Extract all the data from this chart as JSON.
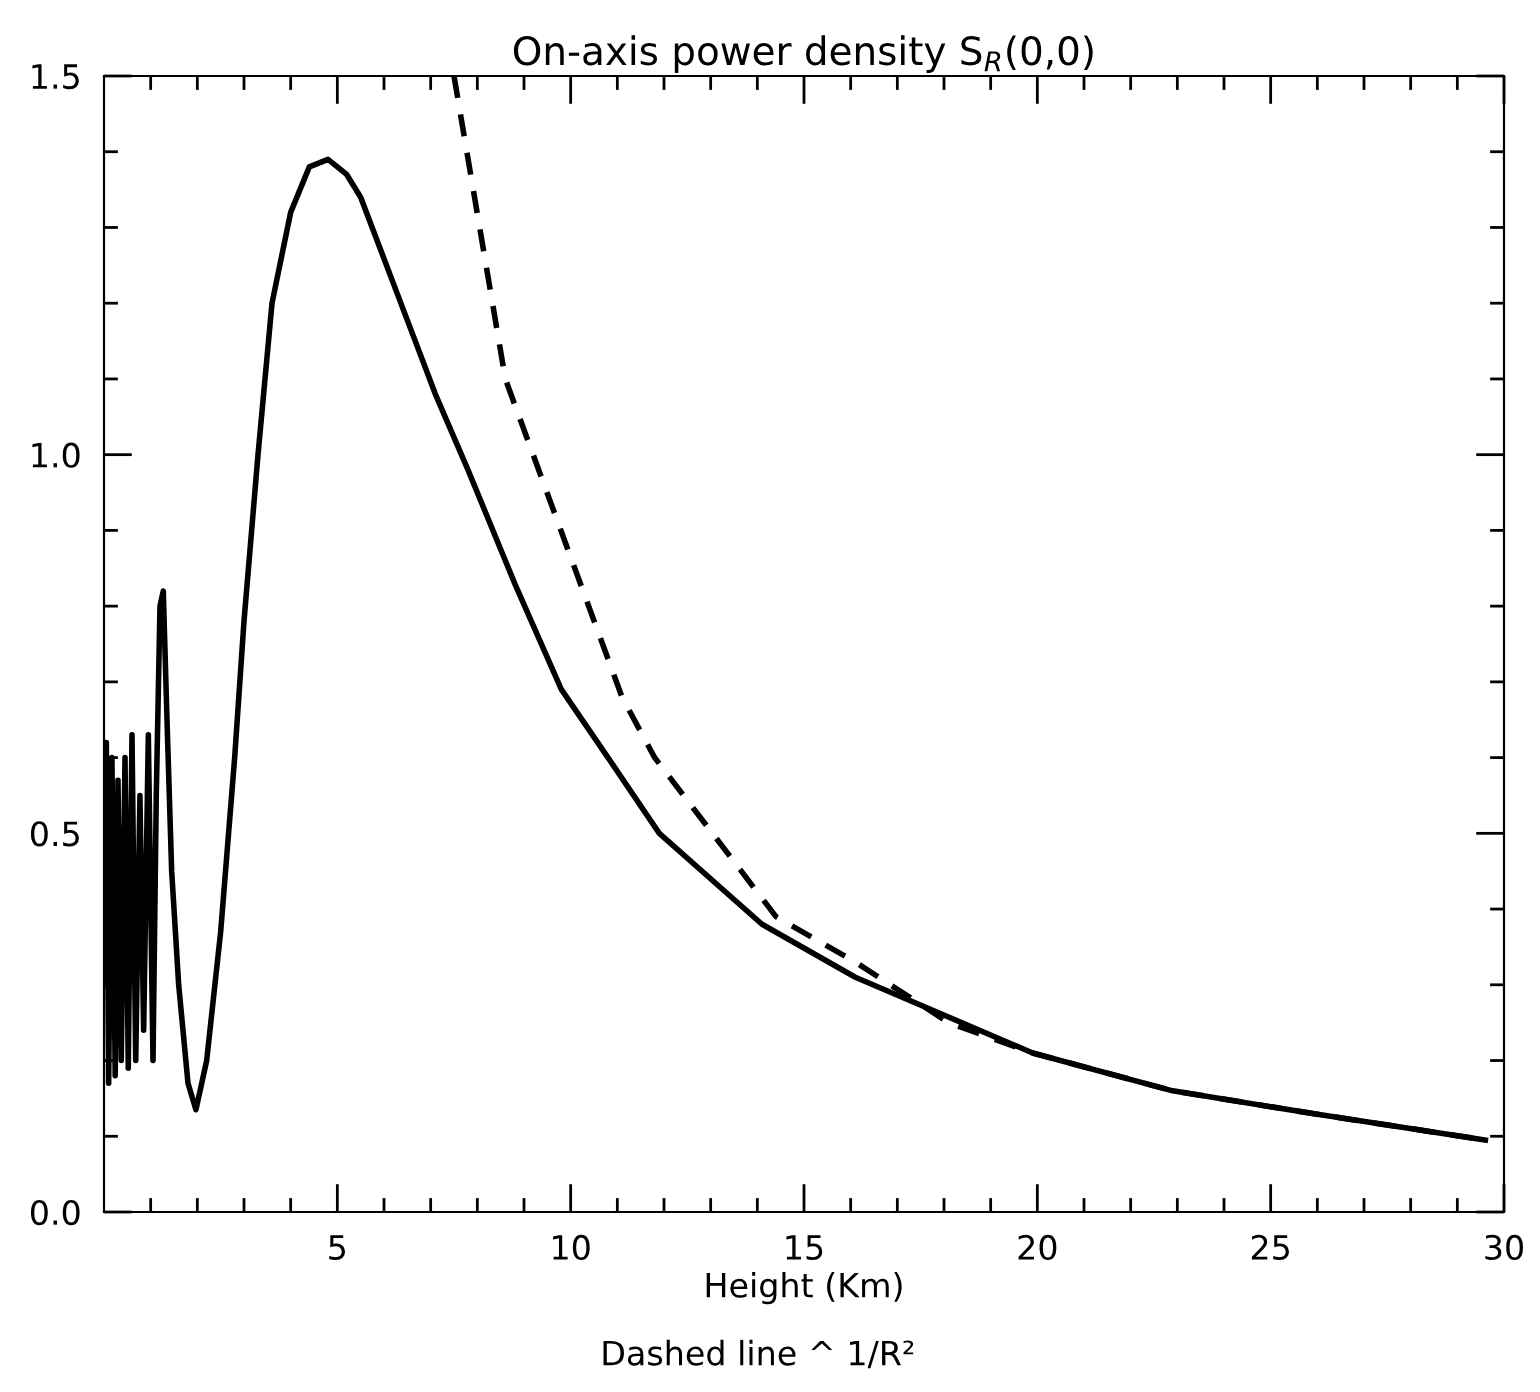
{
  "chart_data": {
    "type": "line",
    "title": "On-axis power density S$_{R}$(0,0)",
    "xlabel": "Height (Km)",
    "annotations": [
      "Dashed line ^ 1/R²"
    ],
    "xlim": [
      0,
      30
    ],
    "ylim": [
      0,
      1.5
    ],
    "xticks": [
      {
        "value": 1,
        "label": null
      },
      {
        "value": 2,
        "label": null
      },
      {
        "value": 3,
        "label": null
      },
      {
        "value": 4,
        "label": null
      },
      5,
      {
        "value": 6,
        "label": null
      },
      {
        "value": 7,
        "label": null
      },
      {
        "value": 8,
        "label": null
      },
      {
        "value": 9,
        "label": null
      },
      10,
      {
        "value": 11,
        "label": null
      },
      {
        "value": 12,
        "label": null
      },
      {
        "value": 13,
        "label": null
      },
      {
        "value": 14,
        "label": null
      },
      15,
      {
        "value": 16,
        "label": null
      },
      {
        "value": 17,
        "label": null
      },
      {
        "value": 18,
        "label": null
      },
      {
        "value": 19,
        "label": null
      },
      20,
      {
        "value": 21,
        "label": null
      },
      {
        "value": 22,
        "label": null
      },
      {
        "value": 23,
        "label": null
      },
      {
        "value": 24,
        "label": null
      },
      25,
      {
        "value": 26,
        "label": null
      },
      {
        "value": 27,
        "label": null
      },
      {
        "value": 28,
        "label": null
      },
      {
        "value": 29,
        "label": null
      },
      30
    ],
    "yticks": [
      {
        "value": 0,
        "label": "0.0"
      },
      {
        "value": 0.1,
        "label": null
      },
      {
        "value": 0.2,
        "label": null
      },
      {
        "value": 0.3,
        "label": null
      },
      {
        "value": 0.4,
        "label": null
      },
      {
        "value": 0.5,
        "label": "0.5"
      },
      {
        "value": 0.6,
        "label": null
      },
      {
        "value": 0.7,
        "label": null
      },
      {
        "value": 0.8,
        "label": null
      },
      {
        "value": 0.9,
        "label": null
      },
      {
        "value": 1.0,
        "label": "1.0"
      },
      {
        "value": 1.1,
        "label": null
      },
      {
        "value": 1.2,
        "label": null
      },
      {
        "value": 1.3,
        "label": null
      },
      {
        "value": 1.4,
        "label": null
      },
      {
        "value": 1.5,
        "label": "1.5"
      }
    ],
    "grid": false,
    "legend": false,
    "marker": "none",
    "series": [
      {
        "color": "#000000",
        "line_style": "solid",
        "x": [
          0.0,
          0.05,
          0.1,
          0.17,
          0.24,
          0.3,
          0.37,
          0.45,
          0.52,
          0.6,
          0.68,
          0.77,
          0.85,
          0.95,
          1.05,
          1.12,
          1.2,
          1.27,
          1.35,
          1.45,
          1.6,
          1.8,
          1.97,
          2.2,
          2.5,
          2.8,
          3.0,
          3.3,
          3.6,
          4.0,
          4.4,
          4.8,
          5.2,
          5.5,
          6.3,
          7.1,
          7.8,
          8.8,
          9.8,
          10.8,
          11.9,
          14.1,
          16.1,
          19.9,
          22.9,
          25.9,
          29.6
        ],
        "values": [
          0.3,
          0.62,
          0.17,
          0.6,
          0.18,
          0.57,
          0.2,
          0.6,
          0.19,
          0.63,
          0.2,
          0.55,
          0.24,
          0.63,
          0.2,
          0.55,
          0.8,
          0.82,
          0.65,
          0.45,
          0.3,
          0.17,
          0.135,
          0.2,
          0.37,
          0.6,
          0.78,
          1.0,
          1.2,
          1.32,
          1.38,
          1.39,
          1.37,
          1.34,
          1.21,
          1.08,
          0.98,
          0.83,
          0.69,
          0.6,
          0.5,
          0.38,
          0.31,
          0.21,
          0.16,
          0.13,
          0.095
        ]
      },
      {
        "color": "#000000",
        "line_style": "dashed",
        "x": [
          7.5,
          8.6,
          11.1,
          11.8,
          14.4,
          16.1,
          18.1,
          19.9,
          22.9,
          25.9,
          29.6
        ],
        "values": [
          1.5,
          1.1,
          0.68,
          0.6,
          0.39,
          0.33,
          0.25,
          0.21,
          0.16,
          0.13,
          0.095
        ]
      }
    ]
  }
}
